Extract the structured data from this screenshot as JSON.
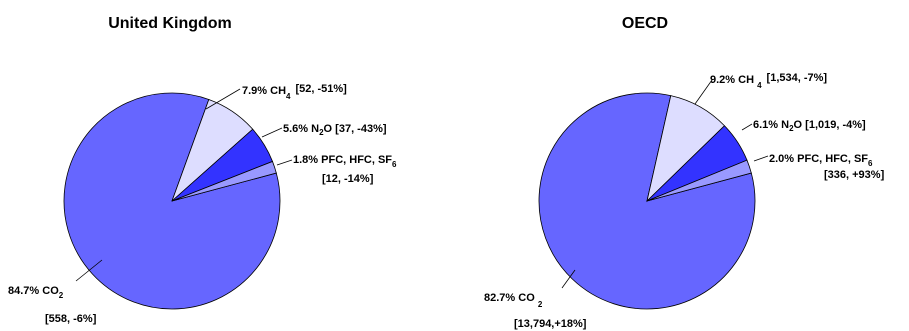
{
  "chart_data": [
    {
      "type": "pie",
      "title": "United Kingdom",
      "slices": [
        {
          "name": "CO2",
          "percent": 84.7,
          "value": 558,
          "change": "-6%",
          "color": "#6666ff",
          "label": {
            "pct": "84.7%",
            "gas": "CO",
            "sub": "2",
            "bracket": "[558, -6%]"
          }
        },
        {
          "name": "CH4",
          "percent": 7.9,
          "value": 52,
          "change": "-51%",
          "color": "#ddddff",
          "label": {
            "pct": "7.9%",
            "gas": "CH",
            "sub": "4",
            "bracket": "[52, -51%]"
          }
        },
        {
          "name": "N2O",
          "percent": 5.6,
          "value": 37,
          "change": "-43%",
          "color": "#3333ff",
          "label": {
            "pct": "5.6%",
            "gas": "N",
            "sub": "2",
            "gas2": "O",
            "bracket": "[37, -43%]"
          }
        },
        {
          "name": "PFC, HFC, SF6",
          "percent": 1.8,
          "value": 12,
          "change": "-14%",
          "color": "#9999ff",
          "label": {
            "pct": "1.8%",
            "gas": "PFC, HFC, SF",
            "sub": "6",
            "bracket": "[12, -14%]"
          }
        }
      ]
    },
    {
      "type": "pie",
      "title": "OECD",
      "slices": [
        {
          "name": "CO2",
          "percent": 82.7,
          "value": 13794,
          "change": "+18%",
          "color": "#6666ff",
          "label": {
            "pct": "82.7%",
            "gas": "CO",
            "sub": "2",
            "bracket": "[13,794,+18%]"
          }
        },
        {
          "name": "CH4",
          "percent": 9.2,
          "value": 1534,
          "change": "-7%",
          "color": "#ddddff",
          "label": {
            "pct": "9.2%",
            "gas": "CH",
            "sub": "4",
            "bracket": "[1,534, -7%]"
          }
        },
        {
          "name": "N2O",
          "percent": 6.1,
          "value": 1019,
          "change": "-4%",
          "color": "#3333ff",
          "label": {
            "pct": "6.1%",
            "gas": "N",
            "sub": "2",
            "gas2": "O",
            "bracket": "[1,019, -4%]"
          }
        },
        {
          "name": "PFC, HFC, SF6",
          "percent": 2.0,
          "value": 336,
          "change": "+93%",
          "color": "#9999ff",
          "label": {
            "pct": "2.0%",
            "gas": "PFC, HFC, SF",
            "sub": "6",
            "bracket": "[336, +93%]"
          }
        }
      ]
    }
  ]
}
